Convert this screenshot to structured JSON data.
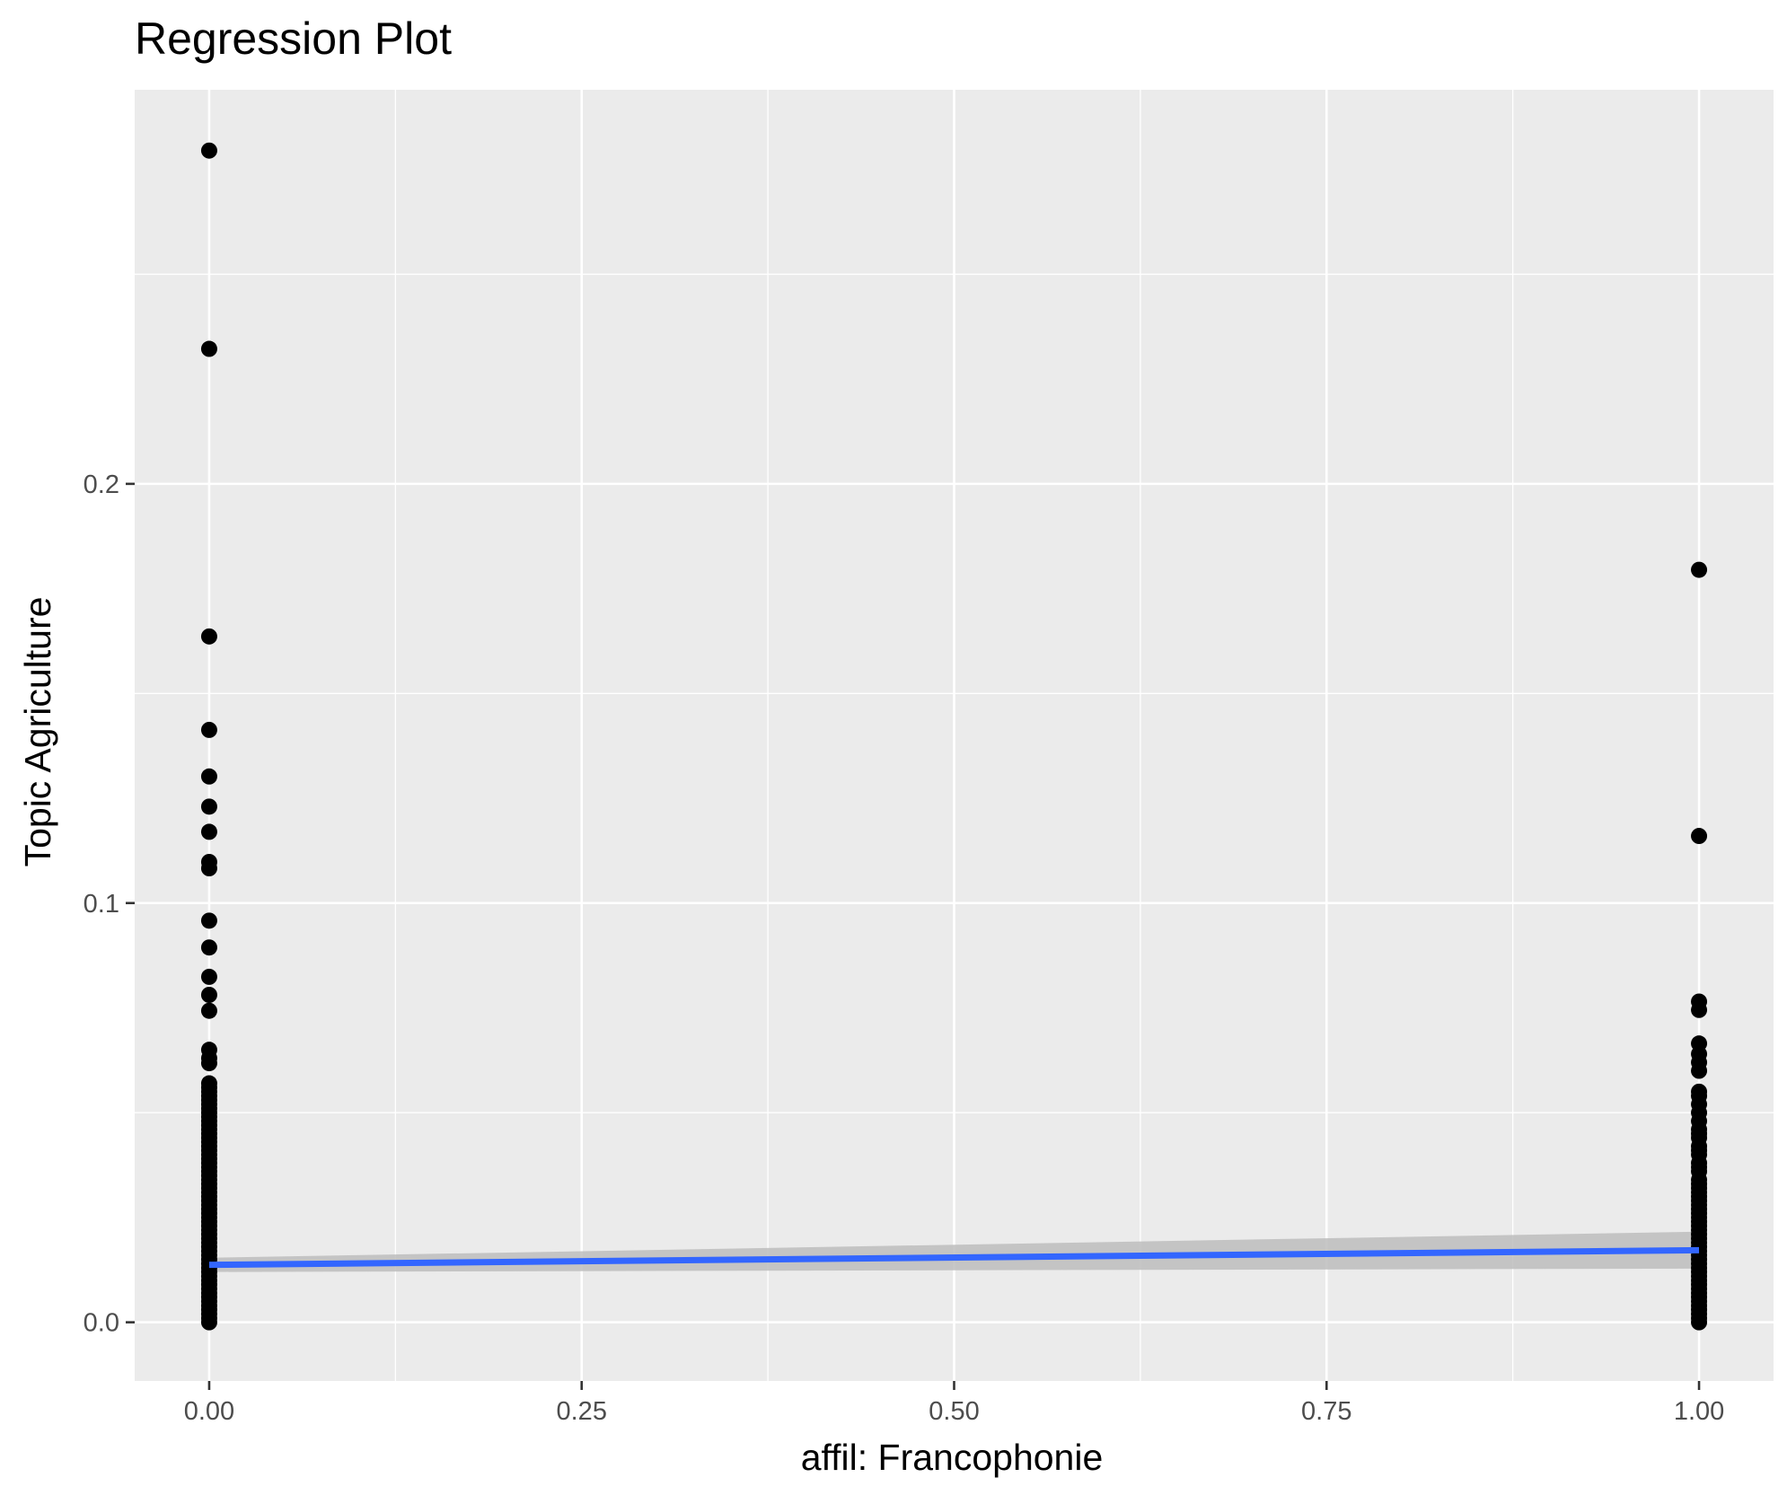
{
  "chart_data": {
    "type": "scatter",
    "title": "Regression Plot",
    "xlabel": "affil: Francophonie",
    "ylabel": "Topic Agriculture",
    "xlim": [
      -0.05,
      1.05
    ],
    "ylim": [
      -0.014,
      0.294
    ],
    "x_ticks": [
      0.0,
      0.25,
      0.5,
      0.75,
      1.0
    ],
    "x_tick_labels": [
      "0.00",
      "0.25",
      "0.50",
      "0.75",
      "1.00"
    ],
    "y_ticks": [
      0.0,
      0.1,
      0.2
    ],
    "y_tick_labels": [
      "0.0",
      "0.1",
      "0.2"
    ],
    "grid": true,
    "colors": {
      "panel": "#ebebeb",
      "grid": "#ffffff",
      "points": "#000000",
      "fit_line": "#3366ff",
      "ci_band": "#bdbdbd"
    },
    "series": [
      {
        "x": 0,
        "values": [
          0.2795,
          0.2322,
          0.1636,
          0.1413,
          0.1302,
          0.123,
          0.117,
          0.1098,
          0.1083,
          0.0958,
          0.0894,
          0.0824,
          0.0781,
          0.0743,
          0.065,
          0.063,
          0.0618,
          0.057,
          0.056,
          0.055,
          0.054,
          0.053,
          0.052,
          0.051,
          0.05,
          0.049,
          0.048,
          0.047,
          0.046,
          0.045,
          0.044,
          0.043,
          0.042,
          0.041,
          0.04,
          0.039,
          0.038,
          0.037,
          0.036,
          0.035,
          0.034,
          0.033,
          0.032,
          0.031,
          0.03,
          0.029,
          0.028,
          0.027,
          0.026,
          0.025,
          0.024,
          0.023,
          0.022,
          0.021,
          0.02,
          0.019,
          0.018,
          0.017,
          0.016,
          0.015,
          0.014,
          0.013,
          0.012,
          0.011,
          0.01,
          0.009,
          0.008,
          0.007,
          0.006,
          0.005,
          0.004,
          0.003,
          0.002,
          0.001,
          0.0
        ]
      },
      {
        "x": 1,
        "values": [
          0.1795,
          0.116,
          0.0765,
          0.0745,
          0.0665,
          0.064,
          0.062,
          0.06,
          0.055,
          0.054,
          0.052,
          0.05,
          0.048,
          0.046,
          0.045,
          0.044,
          0.042,
          0.041,
          0.04,
          0.038,
          0.037,
          0.036,
          0.034,
          0.033,
          0.032,
          0.031,
          0.03,
          0.029,
          0.028,
          0.027,
          0.026,
          0.025,
          0.024,
          0.023,
          0.022,
          0.021,
          0.02,
          0.019,
          0.018,
          0.017,
          0.016,
          0.015,
          0.014,
          0.013,
          0.012,
          0.011,
          0.01,
          0.009,
          0.008,
          0.007,
          0.006,
          0.005,
          0.004,
          0.003,
          0.002,
          0.001,
          0.0
        ]
      }
    ],
    "regression": {
      "x": [
        0,
        1
      ],
      "y": [
        0.0137,
        0.0172
      ],
      "ci_lower": [
        0.012,
        0.0128
      ],
      "ci_upper": [
        0.0154,
        0.0216
      ]
    }
  }
}
